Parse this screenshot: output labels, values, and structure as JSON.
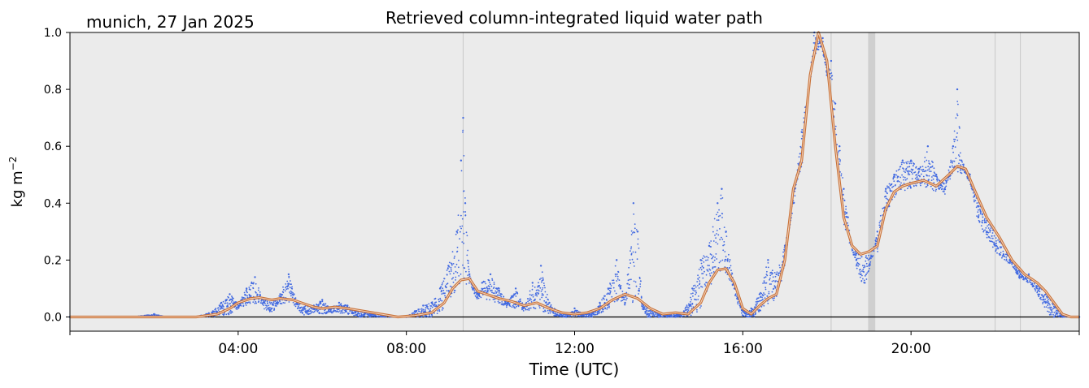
{
  "chart_data": {
    "type": "scatter",
    "title": "Retrieved column-integrated liquid water path",
    "subtitle": "munich, 27 Jan 2025",
    "xlabel": "Time (UTC)",
    "ylabel": "kg m",
    "ylabel_superscript": "−2",
    "xlim": [
      0,
      24
    ],
    "ylim": [
      -0.05,
      1.0
    ],
    "x_ticks": [
      {
        "value": 4,
        "label": "04:00"
      },
      {
        "value": 8,
        "label": "08:00"
      },
      {
        "value": 12,
        "label": "12:00"
      },
      {
        "value": 16,
        "label": "16:00"
      },
      {
        "value": 20,
        "label": "20:00"
      }
    ],
    "y_ticks": [
      {
        "value": 0.0,
        "label": "0.0"
      },
      {
        "value": 0.2,
        "label": "0.2"
      },
      {
        "value": 0.4,
        "label": "0.4"
      },
      {
        "value": 0.6,
        "label": "0.6"
      },
      {
        "value": 0.8,
        "label": "0.8"
      },
      {
        "value": 1.0,
        "label": "1.0"
      }
    ],
    "grid": false,
    "legend": "none",
    "colors": {
      "background": "#ebebeb",
      "points": "#4169e1",
      "smoothed": "#c87137",
      "flag_lines": "#c8c8c8",
      "flag_band": "#cfcfcf",
      "zero_line": "#000000"
    },
    "flag_lines_x": [
      9.35,
      18.1,
      22.0,
      22.6
    ],
    "flag_bands": [
      [
        18.98,
        19.15
      ]
    ],
    "series": [
      {
        "kind": "points",
        "x": [
          0.0,
          0.5,
          1.0,
          1.5,
          2.0,
          2.3,
          2.6,
          3.0,
          3.4,
          3.6,
          3.8,
          4.0,
          4.2,
          4.4,
          4.6,
          4.8,
          5.0,
          5.2,
          5.4,
          5.6,
          5.8,
          6.0,
          6.2,
          6.4,
          6.6,
          6.8,
          7.0,
          7.2,
          7.4,
          7.6,
          7.8,
          8.0,
          8.2,
          8.4,
          8.6,
          8.8,
          9.0,
          9.2,
          9.3,
          9.35,
          9.4,
          9.5,
          9.6,
          9.7,
          9.8,
          10.0,
          10.2,
          10.4,
          10.6,
          10.8,
          11.0,
          11.2,
          11.4,
          11.6,
          11.8,
          12.0,
          12.2,
          12.4,
          12.6,
          12.8,
          13.0,
          13.2,
          13.4,
          13.5,
          13.6,
          13.8,
          14.0,
          14.2,
          14.4,
          14.6,
          14.8,
          15.0,
          15.2,
          15.4,
          15.5,
          15.6,
          15.8,
          16.0,
          16.2,
          16.4,
          16.6,
          16.8,
          17.0,
          17.2,
          17.4,
          17.6,
          17.7,
          17.8,
          17.9,
          18.0,
          18.1,
          18.2,
          18.3,
          18.4,
          18.5,
          18.6,
          18.7,
          18.8,
          18.9,
          19.0,
          19.2,
          19.4,
          19.6,
          19.8,
          20.0,
          20.2,
          20.4,
          20.6,
          20.8,
          21.0,
          21.1,
          21.2,
          21.4,
          21.6,
          21.8,
          22.0,
          22.2,
          22.4,
          22.6,
          22.8,
          23.0,
          23.2,
          23.4,
          23.6,
          23.8,
          24.0
        ],
        "y": [
          0.0,
          0.0,
          0.0,
          0.0,
          0.01,
          0.0,
          0.0,
          0.0,
          0.02,
          0.05,
          0.08,
          0.05,
          0.1,
          0.14,
          0.05,
          0.03,
          0.08,
          0.15,
          0.05,
          0.02,
          0.04,
          0.06,
          0.03,
          0.05,
          0.04,
          0.02,
          0.02,
          0.01,
          0.01,
          0.0,
          0.0,
          0.0,
          0.02,
          0.04,
          0.05,
          0.1,
          0.18,
          0.3,
          0.55,
          0.7,
          0.4,
          0.15,
          0.1,
          0.08,
          0.12,
          0.15,
          0.1,
          0.05,
          0.1,
          0.04,
          0.12,
          0.18,
          0.05,
          0.02,
          0.0,
          0.03,
          0.01,
          0.01,
          0.05,
          0.1,
          0.2,
          0.05,
          0.4,
          0.3,
          0.05,
          0.0,
          0.0,
          0.0,
          0.0,
          0.02,
          0.1,
          0.2,
          0.25,
          0.4,
          0.45,
          0.3,
          0.1,
          0.02,
          0.03,
          0.08,
          0.2,
          0.15,
          0.25,
          0.4,
          0.65,
          0.85,
          1.0,
          0.95,
          0.98,
          0.85,
          0.9,
          0.75,
          0.6,
          0.45,
          0.35,
          0.25,
          0.2,
          0.15,
          0.12,
          0.18,
          0.3,
          0.45,
          0.5,
          0.55,
          0.55,
          0.52,
          0.6,
          0.5,
          0.45,
          0.6,
          0.8,
          0.55,
          0.5,
          0.35,
          0.3,
          0.25,
          0.22,
          0.2,
          0.15,
          0.15,
          0.1,
          0.05,
          0.0,
          0.0,
          0.0,
          0.0
        ]
      },
      {
        "kind": "smoothed",
        "x": [
          0.0,
          0.5,
          1.0,
          1.5,
          2.0,
          2.5,
          3.0,
          3.5,
          3.8,
          4.0,
          4.3,
          4.5,
          4.8,
          5.0,
          5.3,
          5.5,
          5.8,
          6.0,
          6.3,
          6.6,
          7.0,
          7.4,
          7.8,
          8.2,
          8.6,
          8.9,
          9.1,
          9.3,
          9.5,
          9.7,
          9.9,
          10.2,
          10.5,
          10.8,
          11.1,
          11.4,
          11.7,
          12.0,
          12.3,
          12.6,
          12.9,
          13.2,
          13.5,
          13.8,
          14.1,
          14.4,
          14.7,
          15.0,
          15.2,
          15.4,
          15.6,
          15.8,
          16.0,
          16.2,
          16.4,
          16.6,
          16.8,
          17.0,
          17.2,
          17.4,
          17.6,
          17.8,
          18.0,
          18.2,
          18.4,
          18.6,
          18.8,
          19.0,
          19.2,
          19.4,
          19.6,
          19.8,
          20.0,
          20.3,
          20.6,
          20.9,
          21.1,
          21.3,
          21.5,
          21.8,
          22.1,
          22.4,
          22.7,
          23.0,
          23.2,
          23.4,
          23.6,
          23.8,
          24.0
        ],
        "y": [
          0.0,
          0.0,
          0.0,
          0.0,
          0.0,
          0.0,
          0.0,
          0.01,
          0.03,
          0.05,
          0.065,
          0.068,
          0.06,
          0.065,
          0.06,
          0.05,
          0.035,
          0.03,
          0.035,
          0.03,
          0.02,
          0.01,
          0.0,
          0.005,
          0.015,
          0.05,
          0.1,
          0.13,
          0.135,
          0.09,
          0.08,
          0.065,
          0.055,
          0.04,
          0.05,
          0.03,
          0.015,
          0.01,
          0.015,
          0.03,
          0.06,
          0.08,
          0.065,
          0.03,
          0.01,
          0.015,
          0.01,
          0.05,
          0.12,
          0.165,
          0.17,
          0.12,
          0.03,
          0.01,
          0.04,
          0.065,
          0.08,
          0.2,
          0.45,
          0.55,
          0.85,
          1.0,
          0.9,
          0.6,
          0.35,
          0.25,
          0.22,
          0.23,
          0.25,
          0.38,
          0.44,
          0.46,
          0.47,
          0.48,
          0.46,
          0.5,
          0.53,
          0.52,
          0.45,
          0.35,
          0.28,
          0.2,
          0.15,
          0.12,
          0.09,
          0.05,
          0.01,
          0.0,
          0.0
        ]
      }
    ]
  }
}
